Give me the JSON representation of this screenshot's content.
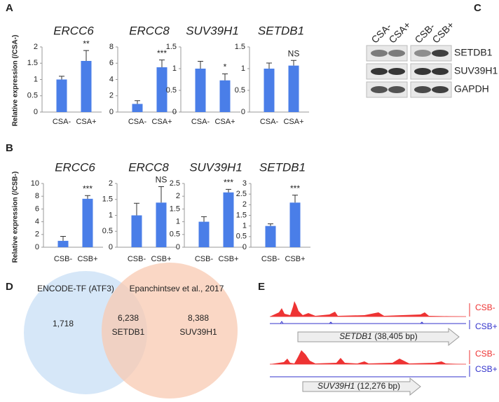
{
  "panel_labels": [
    "A",
    "B",
    "C",
    "D",
    "E"
  ],
  "chart_data": [
    {
      "type": "bar",
      "title": "ERCC6",
      "ylabel": "Relative expression (/CSA-)",
      "categories": [
        "CSA-",
        "CSA+"
      ],
      "values": [
        1.0,
        1.57
      ],
      "errors": [
        0.1,
        0.32
      ],
      "annotation": "**",
      "color": "#4a7ee8",
      "ylim": [
        0,
        2
      ],
      "yticks": [
        0,
        0.5,
        1,
        1.5,
        2
      ]
    },
    {
      "type": "bar",
      "title": "ERCC8",
      "categories": [
        "CSA-",
        "CSA+"
      ],
      "values": [
        1.0,
        5.5
      ],
      "errors": [
        0.4,
        0.9
      ],
      "annotation": "***",
      "color": "#4a7ee8",
      "ylim": [
        0,
        8
      ],
      "yticks": [
        0,
        2,
        4,
        6,
        8
      ]
    },
    {
      "type": "bar",
      "title": "SUV39H1",
      "categories": [
        "CSA-",
        "CSA+"
      ],
      "values": [
        1.0,
        0.73
      ],
      "errors": [
        0.17,
        0.15
      ],
      "annotation": "*",
      "color": "#4a7ee8",
      "ylim": [
        0,
        1.5
      ],
      "yticks": [
        0,
        0.5,
        1,
        1.5
      ]
    },
    {
      "type": "bar",
      "title": "SETDB1",
      "categories": [
        "CSA-",
        "CSA+"
      ],
      "values": [
        1.0,
        1.07
      ],
      "errors": [
        0.13,
        0.12
      ],
      "annotation": "NS",
      "color": "#4a7ee8",
      "ylim": [
        0,
        1.5
      ],
      "yticks": [
        0,
        0.5,
        1,
        1.5
      ]
    },
    {
      "type": "bar",
      "title": "ERCC6",
      "ylabel": "Relative expression (/CSB-)",
      "categories": [
        "CSB-",
        "CSB+"
      ],
      "values": [
        1.0,
        7.6
      ],
      "errors": [
        0.7,
        0.5
      ],
      "annotation": "***",
      "color": "#4a7ee8",
      "ylim": [
        0,
        10
      ],
      "yticks": [
        0,
        2,
        4,
        6,
        8,
        10
      ]
    },
    {
      "type": "bar",
      "title": "ERCC8",
      "categories": [
        "CSB-",
        "CSB+"
      ],
      "values": [
        1.0,
        1.4
      ],
      "errors": [
        0.38,
        0.5
      ],
      "annotation": "NS",
      "color": "#4a7ee8",
      "ylim": [
        0,
        2
      ],
      "yticks": [
        0,
        0.5,
        1,
        1.5,
        2
      ]
    },
    {
      "type": "bar",
      "title": "SUV39H1",
      "categories": [
        "CSB-",
        "CSB+"
      ],
      "values": [
        1.0,
        2.15
      ],
      "errors": [
        0.2,
        0.12
      ],
      "annotation": "***",
      "color": "#4a7ee8",
      "ylim": [
        0,
        2.5
      ],
      "yticks": [
        0,
        0.5,
        1,
        1.5,
        2,
        2.5
      ]
    },
    {
      "type": "bar",
      "title": "SETDB1",
      "categories": [
        "CSB-",
        "CSB+"
      ],
      "values": [
        1.0,
        2.1
      ],
      "errors": [
        0.1,
        0.35
      ],
      "annotation": "***",
      "color": "#4a7ee8",
      "ylim": [
        0,
        3
      ],
      "yticks": [
        0,
        0.5,
        1,
        1.5,
        2,
        2.5,
        3
      ]
    }
  ],
  "blot": {
    "lanes": [
      "CSA-",
      "CSA+",
      "CSB-",
      "CSB+"
    ],
    "rows": [
      "SETDB1",
      "SUV39H1",
      "GAPDH"
    ]
  },
  "venn": {
    "left_title": "ENCODE-TF (ATF3)",
    "right_title": "Epanchintsev et al., 2017",
    "left_only": {
      "value": 1718,
      "label": "1,718"
    },
    "overlap": {
      "value": 6238,
      "label": "6,238"
    },
    "overlap_gene": "SETDB1",
    "right_only": {
      "value": 8388,
      "label": "8,388"
    },
    "right_gene": "SUV39H1"
  },
  "tracks": [
    {
      "gene": "SETDB1",
      "size": "(38,405 bp)",
      "labels": [
        "CSB-",
        "CSB+"
      ]
    },
    {
      "gene": "SUV39H1",
      "size": "(12,276 bp)",
      "labels": [
        "CSB-",
        "CSB+"
      ]
    }
  ]
}
